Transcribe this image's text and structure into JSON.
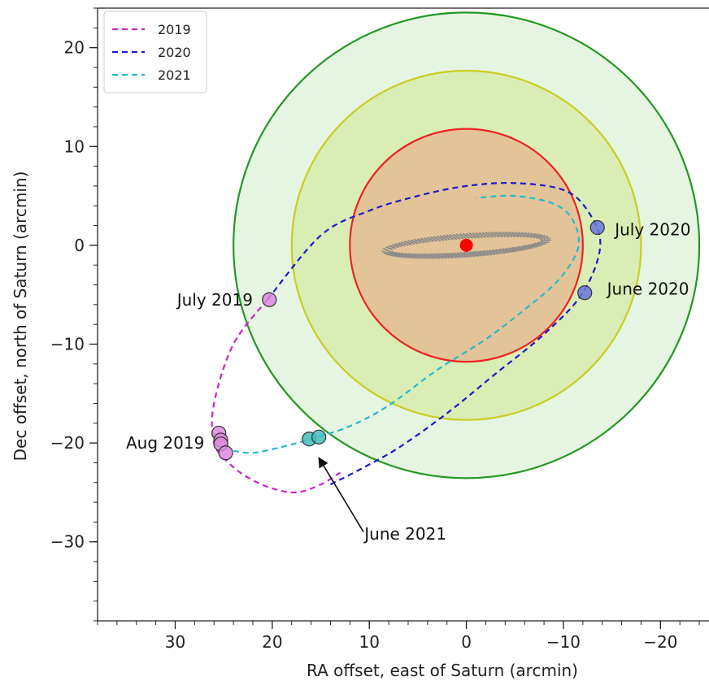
{
  "chart_data": {
    "type": "scatter",
    "title": "",
    "xlabel": "RA offset, east of Saturn (arcmin)",
    "ylabel": "Dec offset, north of Saturn (arcmin)",
    "xlim": [
      38,
      -25
    ],
    "ylim": [
      -38,
      24
    ],
    "x_ticks": [
      30,
      20,
      10,
      0,
      -10,
      -20
    ],
    "x_tick_labels": [
      "30",
      "20",
      "10",
      "0",
      "−10",
      "−20"
    ],
    "y_ticks": [
      20,
      10,
      0,
      -10,
      -20,
      -30
    ],
    "y_tick_labels": [
      "20",
      "10",
      "0",
      "−10",
      "−20",
      "−30"
    ],
    "grid": false,
    "legend": {
      "position": "top-left"
    },
    "series": [
      {
        "name": "2019",
        "color": "#cc22cc",
        "style": "dashed",
        "path": [
          [
            20.5,
            -5.5
          ],
          [
            24,
            -10
          ],
          [
            26,
            -16
          ],
          [
            26,
            -20
          ],
          [
            24.5,
            -22
          ],
          [
            22.5,
            -23.5
          ],
          [
            20,
            -24.6
          ],
          [
            17.5,
            -25
          ],
          [
            15,
            -24.2
          ],
          [
            13,
            -23
          ]
        ]
      },
      {
        "name": "2020",
        "color": "#1a1acc",
        "style": "dashed",
        "path": [
          [
            14,
            -24.2
          ],
          [
            11,
            -22.7
          ],
          [
            7,
            -20.5
          ],
          [
            2,
            -17
          ],
          [
            -3,
            -13
          ],
          [
            -8,
            -9
          ],
          [
            -12,
            -4.8
          ],
          [
            -13.8,
            0
          ],
          [
            -12.5,
            3.5
          ],
          [
            -10,
            5.6
          ],
          [
            -5,
            6.3
          ],
          [
            0,
            6
          ],
          [
            5,
            5
          ],
          [
            10,
            3.5
          ],
          [
            15,
            1
          ],
          [
            20.5,
            -5.5
          ]
        ]
      },
      {
        "name": "2021",
        "color": "#22bbcc",
        "style": "dashed",
        "path": [
          [
            24,
            -20.8
          ],
          [
            22,
            -21
          ],
          [
            19,
            -20.4
          ],
          [
            16,
            -19.6
          ],
          [
            12,
            -18.3
          ],
          [
            8,
            -16.2
          ],
          [
            3,
            -12.6
          ],
          [
            -2,
            -9.5
          ],
          [
            -6,
            -6.5
          ],
          [
            -9.5,
            -3.5
          ],
          [
            -11.5,
            -0.3
          ],
          [
            -11,
            2.5
          ],
          [
            -9,
            4.2
          ],
          [
            -5,
            5
          ],
          [
            -1,
            4.8
          ]
        ]
      }
    ],
    "markers": [
      {
        "label": "July 2019",
        "x": 20.3,
        "y": -5.5,
        "series": "2019"
      },
      {
        "label": "Aug 2019",
        "x": 25.5,
        "y": -19,
        "series": "2019"
      },
      {
        "label": "Aug 2019",
        "x": 25.3,
        "y": -19.7,
        "series": "2019"
      },
      {
        "label": "Aug 2019",
        "x": 25.3,
        "y": -20.1,
        "series": "2019"
      },
      {
        "label": "Aug 2019",
        "x": 24.8,
        "y": -21.0,
        "series": "2019"
      },
      {
        "label": "June 2020",
        "x": -12.2,
        "y": -4.8,
        "series": "2020"
      },
      {
        "label": "July 2020",
        "x": -13.5,
        "y": 1.8,
        "series": "2020"
      },
      {
        "label": "June 2021",
        "x": 16.2,
        "y": -19.6,
        "series": "2021"
      },
      {
        "label": "June 2021",
        "x": 15.2,
        "y": -19.4,
        "series": "2021"
      }
    ],
    "saturn": {
      "x": 0,
      "y": 0,
      "color": "#ff0000"
    },
    "circles": [
      {
        "radius": 24,
        "stroke": "#229922",
        "fill": "#e6f5e2"
      },
      {
        "radius": 18,
        "stroke": "#cccc22",
        "fill": "#d9edb4"
      },
      {
        "radius": 12,
        "stroke": "#ee2222",
        "fill": "#e3c498"
      }
    ],
    "annotations": [
      {
        "text": "July 2019",
        "x": 22,
        "y": -5.5,
        "anchor": "end"
      },
      {
        "text": "Aug 2019",
        "x": 27,
        "y": -20,
        "anchor": "end"
      },
      {
        "text": "June 2020",
        "x": -14.5,
        "y": -4.4,
        "anchor": "start"
      },
      {
        "text": "July 2020",
        "x": -15.3,
        "y": 1.6,
        "anchor": "start"
      },
      {
        "text": "June 2021",
        "x": 10.5,
        "y": -29.2,
        "anchor": "start"
      }
    ],
    "arrow": {
      "from": [
        10.6,
        -29
      ],
      "to": [
        15.2,
        -21.5
      ]
    }
  }
}
